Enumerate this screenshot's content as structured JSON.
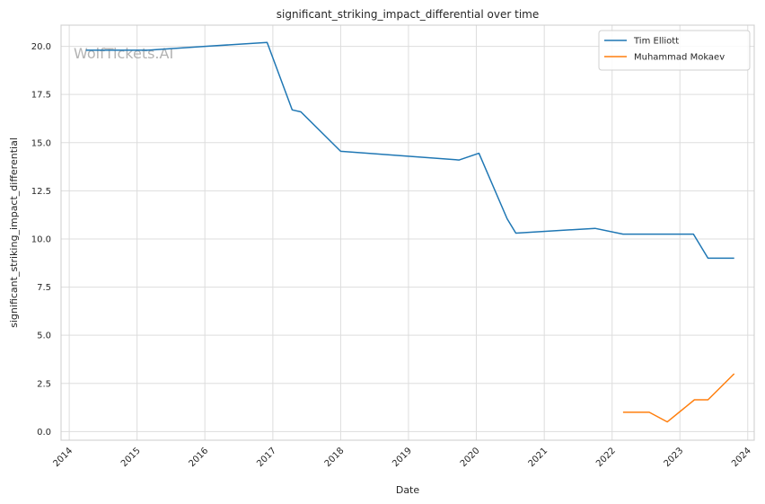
{
  "chart_data": {
    "type": "line",
    "title": "significant_striking_impact_differential over time",
    "xlabel": "Date",
    "ylabel": "significant_striking_impact_differential",
    "watermark": "WolfTickets.AI",
    "x_ticks": [
      "2014",
      "2015",
      "2016",
      "2017",
      "2018",
      "2019",
      "2020",
      "2021",
      "2022",
      "2023",
      "2024"
    ],
    "y_ticks": [
      "0.0",
      "2.5",
      "5.0",
      "7.5",
      "10.0",
      "12.5",
      "15.0",
      "17.5",
      "20.0"
    ],
    "xlim": [
      "2013-11-18",
      "2024-02-05"
    ],
    "ylim": [
      -0.45,
      21.1
    ],
    "grid": true,
    "legend_position": "top-right",
    "series": [
      {
        "name": "Tim Elliott",
        "color": "#1f77b4",
        "points": [
          [
            "2014-04-01",
            19.8
          ],
          [
            "2015-03-01",
            19.8
          ],
          [
            "2016-01-01",
            20.0
          ],
          [
            "2016-12-01",
            20.2
          ],
          [
            "2017-04-15",
            16.7
          ],
          [
            "2017-06-01",
            16.6
          ],
          [
            "2018-01-01",
            14.55
          ],
          [
            "2019-10-01",
            14.1
          ],
          [
            "2020-01-15",
            14.45
          ],
          [
            "2020-06-15",
            11.05
          ],
          [
            "2020-08-01",
            10.3
          ],
          [
            "2021-10-01",
            10.55
          ],
          [
            "2022-03-01",
            10.25
          ],
          [
            "2023-03-15",
            10.25
          ],
          [
            "2023-06-01",
            9.0
          ],
          [
            "2023-10-20",
            9.0
          ]
        ]
      },
      {
        "name": "Muhammad Mokaev",
        "color": "#ff7f0e",
        "points": [
          [
            "2022-03-01",
            1.0
          ],
          [
            "2022-07-20",
            1.0
          ],
          [
            "2022-10-25",
            0.5
          ],
          [
            "2023-03-20",
            1.65
          ],
          [
            "2023-06-01",
            1.65
          ],
          [
            "2023-10-20",
            3.0
          ]
        ]
      }
    ]
  }
}
